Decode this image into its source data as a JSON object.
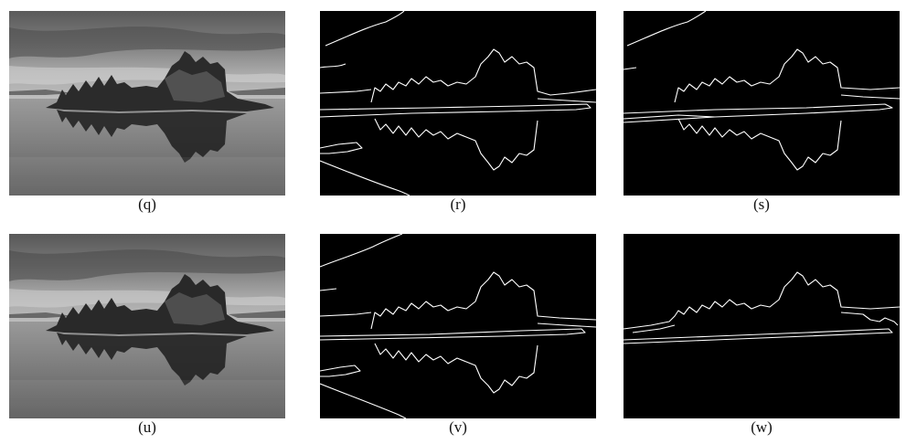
{
  "figure": {
    "panels": [
      {
        "id": "q",
        "caption": "(q)",
        "kind": "grayscale-photo"
      },
      {
        "id": "r",
        "caption": "(r)",
        "kind": "edge-map"
      },
      {
        "id": "s",
        "caption": "(s)",
        "kind": "edge-map"
      },
      {
        "id": "u",
        "caption": "(u)",
        "kind": "grayscale-photo"
      },
      {
        "id": "v",
        "caption": "(v)",
        "kind": "edge-map"
      },
      {
        "id": "w",
        "caption": "(w)",
        "kind": "edge-map"
      }
    ]
  },
  "colors": {
    "background": "#ffffff",
    "edge_map_background": "#000000",
    "edge_stroke": "#ffffff",
    "caption_text": "#111111"
  }
}
